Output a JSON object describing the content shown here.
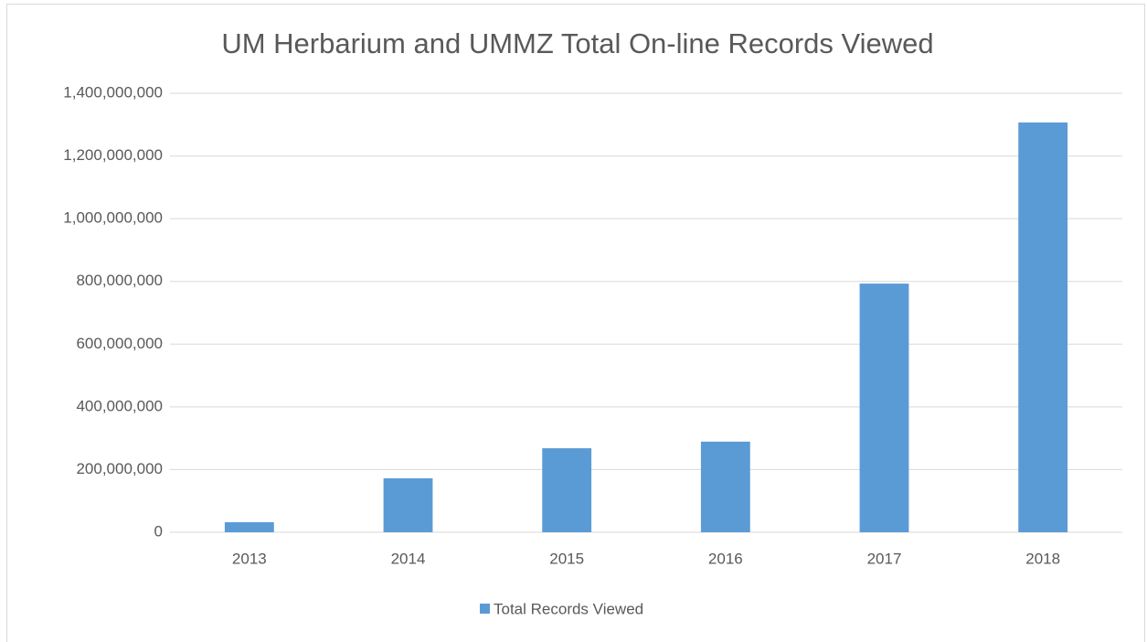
{
  "chart_data": {
    "type": "bar",
    "title": "UM Herbarium and UMMZ Total On-line Records Viewed",
    "categories": [
      "2013",
      "2014",
      "2015",
      "2016",
      "2017",
      "2018"
    ],
    "series": [
      {
        "name": "Total Records Viewed",
        "color": "#5b9bd5",
        "values": [
          32000000,
          172000000,
          268000000,
          289000000,
          793000000,
          1307000000
        ]
      }
    ],
    "ylim": [
      0,
      1400000000
    ],
    "yticks": [
      0,
      {
        "value": 200000000,
        "label": "200,000,000"
      },
      {
        "value": 400000000,
        "label": "400,000,000"
      },
      {
        "value": 600000000,
        "label": "600,000,000"
      },
      {
        "value": 800000000,
        "label": "800,000,000"
      },
      {
        "value": 1000000000,
        "label": "1,000,000,000"
      },
      {
        "value": 1200000000,
        "label": "1,200,000,000"
      },
      {
        "value": 1400000000,
        "label": "1,400,000,000"
      }
    ],
    "grid": true,
    "legend": "bottom"
  }
}
